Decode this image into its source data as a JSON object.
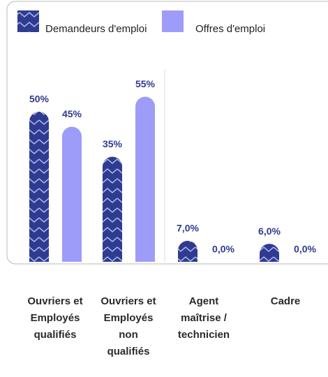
{
  "chart_data": {
    "type": "bar",
    "categories": [
      "Ouvriers et Employés qualifiés",
      "Ouvriers et Employés non qualifiés",
      "Agent maîtrise / technicien",
      "Cadre"
    ],
    "series": [
      {
        "name": "Demandeurs d'emploi",
        "color": "#2f3b8f",
        "values": [
          50,
          35,
          7,
          6
        ],
        "value_labels": [
          "50%",
          "35%",
          "7,0%",
          "6,0%"
        ]
      },
      {
        "name": "Offres d'emploi",
        "color": "#9d9cf9",
        "values": [
          45,
          55,
          0,
          0
        ],
        "value_labels": [
          "45%",
          "55%",
          "0,0%",
          "0,0%"
        ]
      }
    ]
  }
}
